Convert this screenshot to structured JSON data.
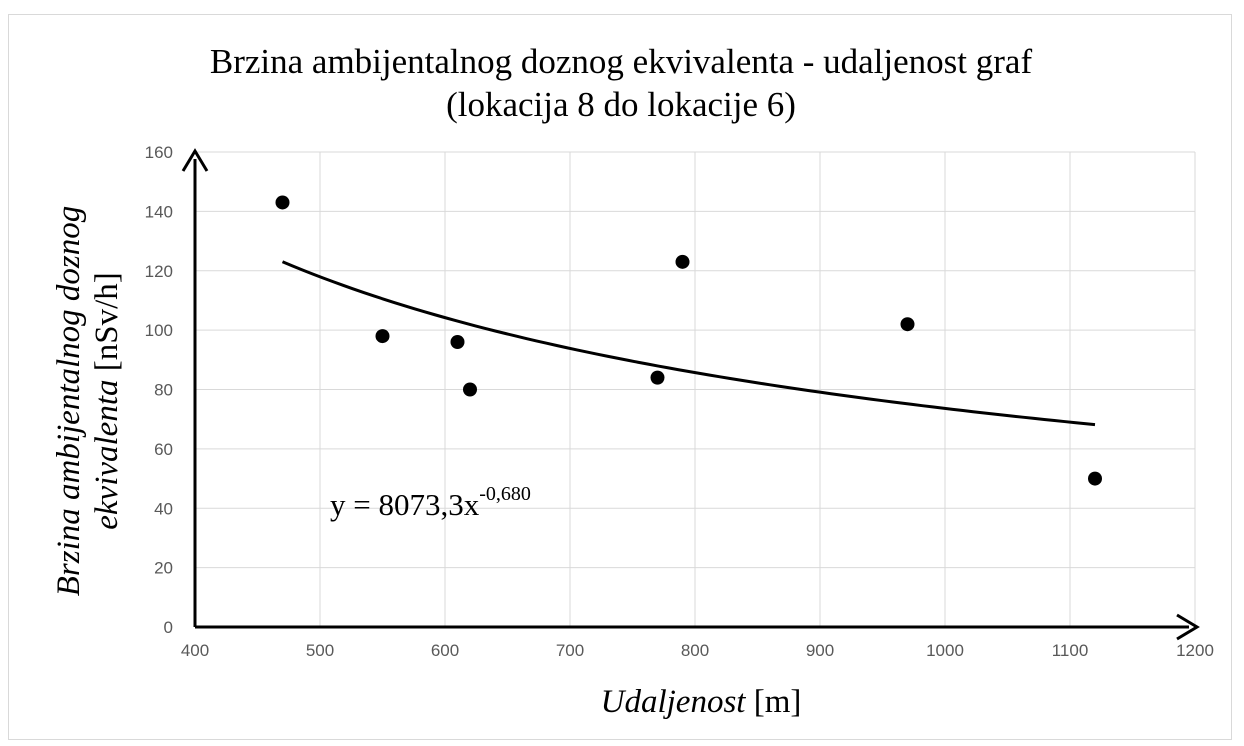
{
  "chart_data": {
    "type": "scatter",
    "title": [
      "Brzina ambijentalnog doznog ekvivalenta - udaljenost graf",
      "(lokacija 8 do lokacije 6)"
    ],
    "xlabel": {
      "italic": "Udaljenost",
      "unit": " [m]"
    },
    "ylabel": {
      "line1_italic": "Brzina ambijentalnog doznog",
      "line2_italic": "ekvivalenta",
      "line2_unit": " [nSv/h]"
    },
    "xlim": [
      400,
      1200
    ],
    "ylim": [
      0,
      160
    ],
    "x_ticks": [
      400,
      500,
      600,
      700,
      800,
      900,
      1000,
      1100,
      1200
    ],
    "y_ticks": [
      0,
      20,
      40,
      60,
      80,
      100,
      120,
      140,
      160
    ],
    "grid": true,
    "points": [
      {
        "x": 470,
        "y": 143
      },
      {
        "x": 550,
        "y": 98
      },
      {
        "x": 610,
        "y": 96
      },
      {
        "x": 620,
        "y": 80
      },
      {
        "x": 770,
        "y": 84
      },
      {
        "x": 790,
        "y": 123
      },
      {
        "x": 970,
        "y": 102
      },
      {
        "x": 1120,
        "y": 50
      }
    ],
    "trendline": {
      "type": "power",
      "coefficient": 8073.3,
      "exponent": -0.68,
      "x_range": [
        470,
        1120
      ],
      "equation": {
        "base": "y = 8073,3x",
        "exponent": "-0,680"
      }
    },
    "colors": {
      "points": "#000000",
      "trendline": "#000000",
      "grid": "#d9d9d9",
      "axis": "#000000",
      "tick_text": "#595959"
    }
  }
}
